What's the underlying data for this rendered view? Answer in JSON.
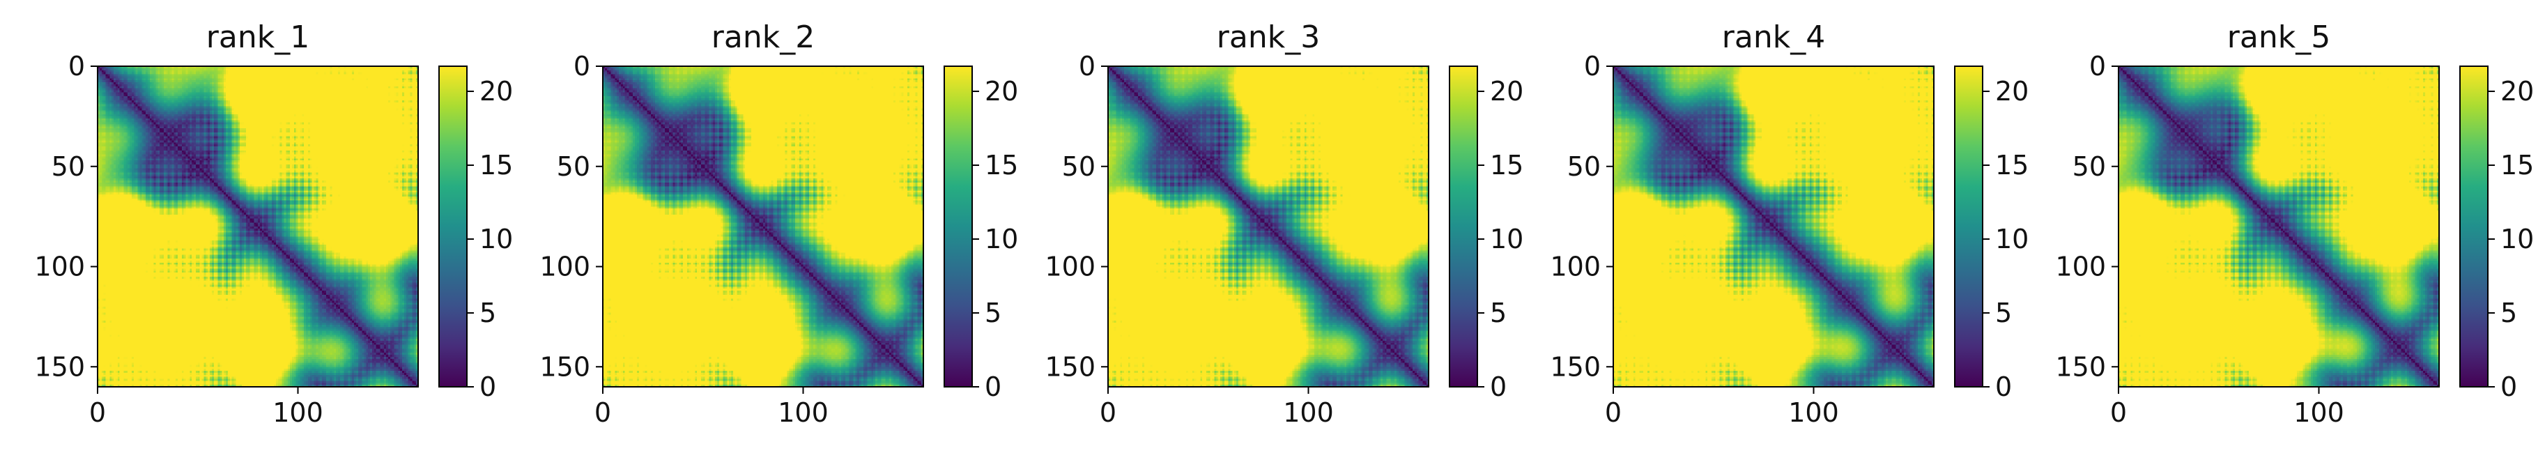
{
  "chart_data": [
    {
      "type": "heatmap",
      "title": "rank_1",
      "x_ticks": [
        "0",
        "100"
      ],
      "y_ticks": [
        "0",
        "50",
        "100",
        "150"
      ],
      "colorbar_ticks": [
        "0",
        "5",
        "10",
        "15",
        "20"
      ],
      "xlim": [
        0,
        160
      ],
      "ylim": [
        160,
        0
      ],
      "colorbar_range": [
        0,
        21.7
      ],
      "colormap": "viridis",
      "description": "pairwise distance matrix, symmetric, dark main diagonal, saturated (yellow) values far from diagonal"
    },
    {
      "type": "heatmap",
      "title": "rank_2",
      "x_ticks": [
        "0",
        "100"
      ],
      "y_ticks": [
        "0",
        "50",
        "100",
        "150"
      ],
      "colorbar_ticks": [
        "0",
        "5",
        "10",
        "15",
        "20"
      ],
      "xlim": [
        0,
        160
      ],
      "ylim": [
        160,
        0
      ],
      "colorbar_range": [
        0,
        21.7
      ],
      "colormap": "viridis",
      "description": "pairwise distance matrix, symmetric, dark main diagonal"
    },
    {
      "type": "heatmap",
      "title": "rank_3",
      "x_ticks": [
        "0",
        "100"
      ],
      "y_ticks": [
        "0",
        "50",
        "100",
        "150"
      ],
      "colorbar_ticks": [
        "0",
        "5",
        "10",
        "15",
        "20"
      ],
      "xlim": [
        0,
        160
      ],
      "ylim": [
        160,
        0
      ],
      "colorbar_range": [
        0,
        21.7
      ],
      "colormap": "viridis",
      "description": "pairwise distance matrix, symmetric, dark main diagonal"
    },
    {
      "type": "heatmap",
      "title": "rank_4",
      "x_ticks": [
        "0",
        "100"
      ],
      "y_ticks": [
        "0",
        "50",
        "100",
        "150"
      ],
      "colorbar_ticks": [
        "0",
        "5",
        "10",
        "15",
        "20"
      ],
      "xlim": [
        0,
        160
      ],
      "ylim": [
        160,
        0
      ],
      "colorbar_range": [
        0,
        21.7
      ],
      "colormap": "viridis",
      "description": "pairwise distance matrix, symmetric, dark main diagonal"
    },
    {
      "type": "heatmap",
      "title": "rank_5",
      "x_ticks": [
        "0",
        "100"
      ],
      "y_ticks": [
        "0",
        "50",
        "100",
        "150"
      ],
      "colorbar_ticks": [
        "0",
        "5",
        "10",
        "15",
        "20"
      ],
      "xlim": [
        0,
        160
      ],
      "ylim": [
        160,
        0
      ],
      "colorbar_range": [
        0,
        21.7
      ],
      "colormap": "viridis",
      "description": "pairwise distance matrix, symmetric, dark main diagonal"
    }
  ],
  "colors": {
    "viridis": [
      "#440154",
      "#472c7a",
      "#3b518b",
      "#2c718e",
      "#21908d",
      "#27ad81",
      "#5cc863",
      "#aadc32",
      "#fde725"
    ],
    "axis": "#000000",
    "text": "#111111"
  }
}
